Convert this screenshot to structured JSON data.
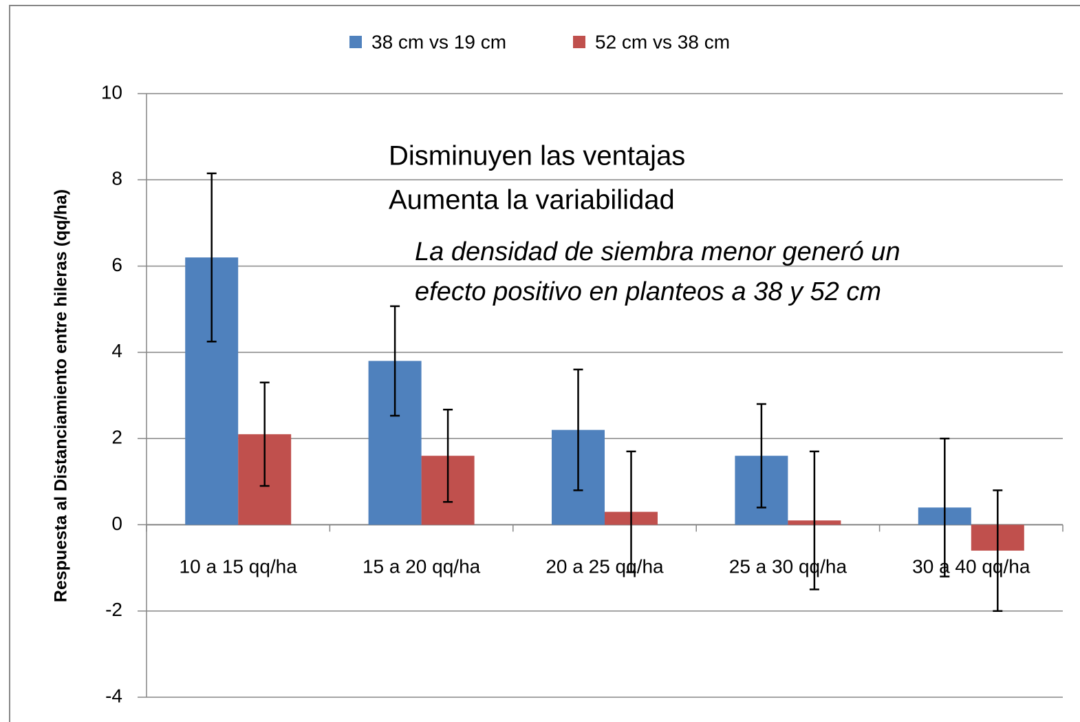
{
  "chart_data": {
    "type": "bar",
    "y_label": "Respuesta al Distanciamiento  entre hileras (qq/ha)",
    "categories": [
      "10 a 15 qq/ha",
      "15 a 20 qq/ha",
      "20 a 25 qq/ha",
      "25 a 30 qq/ha",
      "30 a 40 qq/ha"
    ],
    "series": [
      {
        "name": "38 cm vs 19 cm",
        "color": "#4f81bd",
        "values": [
          6.2,
          3.8,
          2.2,
          1.6,
          0.4
        ],
        "errors": [
          1.95,
          1.27,
          1.4,
          1.2,
          1.6
        ]
      },
      {
        "name": "52 cm vs 38 cm",
        "color": "#c0504d",
        "values": [
          2.1,
          1.6,
          0.3,
          0.1,
          -0.6
        ],
        "errors": [
          1.2,
          1.07,
          1.4,
          1.6,
          1.4
        ]
      }
    ],
    "ylim": [
      -4,
      10
    ],
    "yticks": [
      -4,
      -2,
      0,
      2,
      4,
      6,
      8,
      10
    ],
    "grid": true,
    "legend": "top",
    "annotations": [
      "Disminuyen las ventajas",
      "Aumenta la variabilidad"
    ],
    "notes": [
      "La densidad de siembra menor generó un",
      "efecto positivo en planteos a 38 y 52 cm"
    ],
    "notes_color": "#00b050"
  }
}
